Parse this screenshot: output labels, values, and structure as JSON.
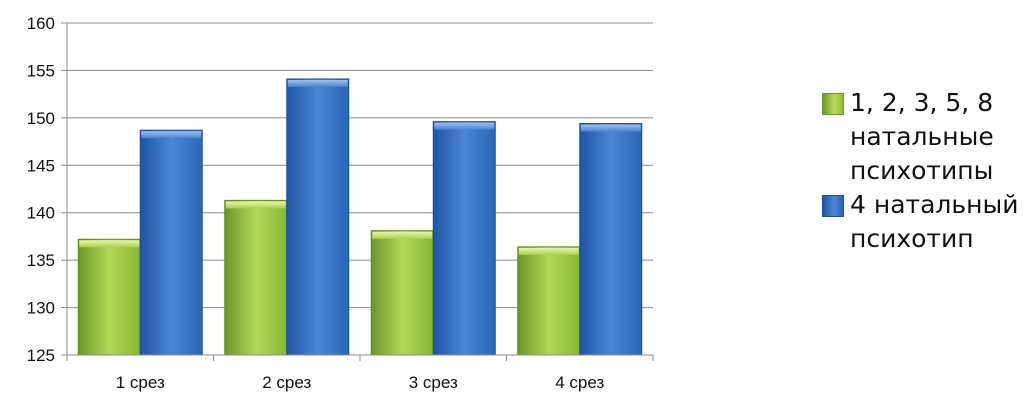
{
  "chart_data": {
    "type": "bar",
    "categories": [
      "1 срез",
      "2 срез",
      "3 срез",
      "4 срез"
    ],
    "series": [
      {
        "name": "1, 2, 3, 5, 8 натальные психотипы",
        "values": [
          137.2,
          141.3,
          138.1,
          136.4
        ],
        "color": "#9bc94b"
      },
      {
        "name": "4 натальный психотип",
        "values": [
          148.7,
          154.1,
          149.6,
          149.4
        ],
        "color": "#3a74c4"
      }
    ],
    "yticks": [
      125,
      130,
      135,
      140,
      145,
      150,
      155,
      160
    ],
    "ylim": [
      125,
      160
    ],
    "grid": true,
    "legend_position": "right"
  },
  "legend": {
    "series0_label": "1, 2, 3, 5, 8\nнатальные\nпсихотипы",
    "series1_label": "4 натальный\nпсихотип"
  }
}
